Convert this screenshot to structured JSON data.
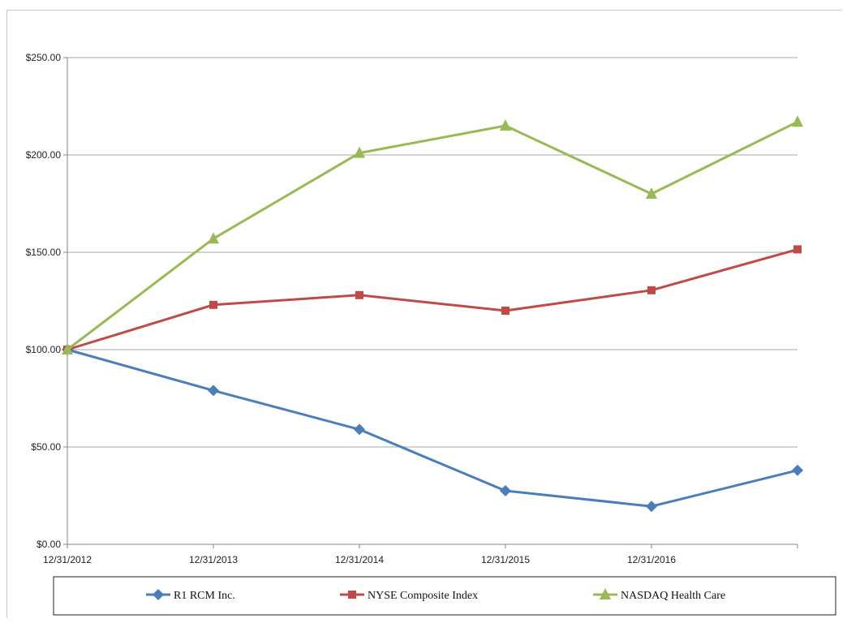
{
  "chart_data": {
    "type": "line",
    "categories": [
      "12/31/2012",
      "12/31/2013",
      "12/31/2014",
      "12/31/2015",
      "12/31/2016",
      ""
    ],
    "ytick_labels": [
      "$0.00",
      "$50.00",
      "$100.00",
      "$150.00",
      "$200.00",
      "$250.00"
    ],
    "yticks": [
      0,
      50,
      100,
      150,
      200,
      250
    ],
    "ylim": [
      0,
      250
    ],
    "grid": true,
    "legend_position": "bottom",
    "series": [
      {
        "name": "R1 RCM Inc.",
        "values": [
          100,
          79,
          59,
          27.5,
          19.5,
          38
        ],
        "color": "#4a7ebb",
        "marker": "diamond"
      },
      {
        "name": "NYSE Composite Index",
        "values": [
          100,
          123,
          128,
          120,
          130.5,
          151.5
        ],
        "color": "#be4b48",
        "marker": "square"
      },
      {
        "name": "NASDAQ Health Care",
        "values": [
          100,
          157,
          201,
          215,
          180,
          217
        ],
        "color": "#98b954",
        "marker": "triangle"
      }
    ]
  }
}
